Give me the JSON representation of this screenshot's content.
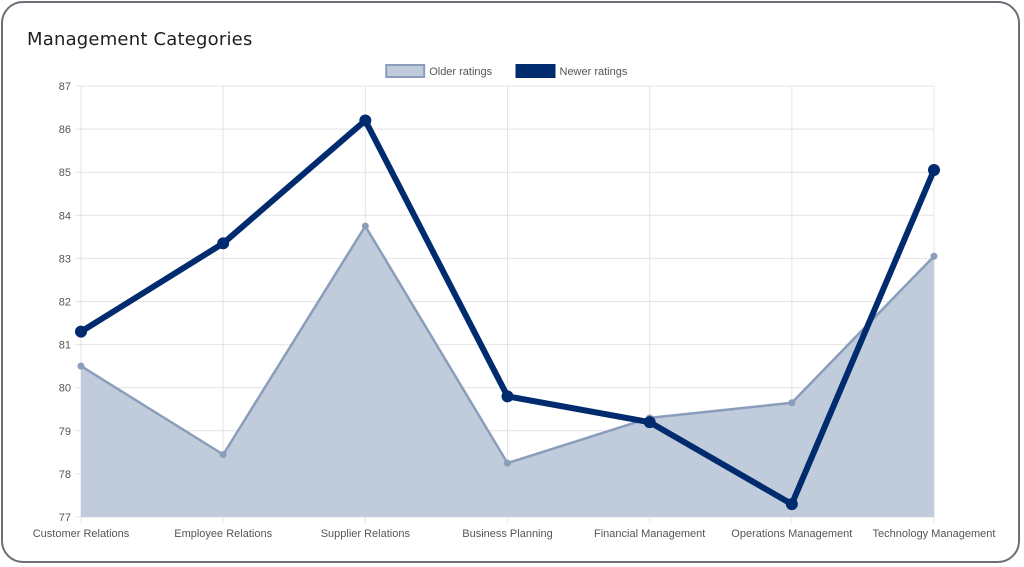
{
  "chart_data": {
    "type": "line",
    "title": "Management Categories",
    "categories": [
      "Customer Relations",
      "Employee Relations",
      "Supplier Relations",
      "Business Planning",
      "Financial Management",
      "Operations Management",
      "Technology Management"
    ],
    "series": [
      {
        "name": "Older ratings",
        "values": [
          80.5,
          78.45,
          83.75,
          78.25,
          79.3,
          79.65,
          83.05
        ],
        "fill": true,
        "line_color": "#8a9dbb",
        "fill_color": "#c0cbdb"
      },
      {
        "name": "Newer ratings",
        "values": [
          81.3,
          83.35,
          86.2,
          79.8,
          79.2,
          77.3,
          85.05
        ],
        "fill": false,
        "line_color": "#002b6e"
      }
    ],
    "ylim": [
      77,
      87
    ],
    "yticks": [
      77,
      78,
      79,
      80,
      81,
      82,
      83,
      84,
      85,
      86,
      87
    ],
    "xlabel": "",
    "ylabel": "",
    "grid": true,
    "legend_position": "top-center"
  }
}
